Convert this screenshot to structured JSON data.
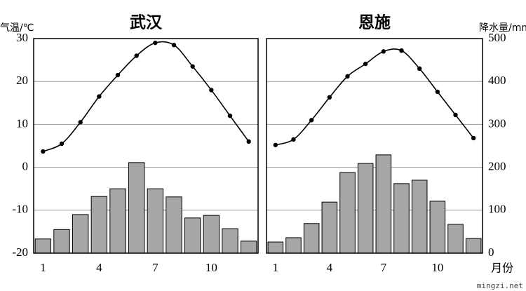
{
  "chart_data": [
    {
      "type": "climate",
      "title": "武汉",
      "categories": [
        "1",
        null,
        null,
        "4",
        null,
        null,
        "7",
        null,
        null,
        "10",
        null,
        null
      ],
      "series": [
        {
          "name": "气温",
          "color": "#000000",
          "values": [
            3.7,
            5.5,
            10.5,
            16.5,
            21.5,
            26,
            29,
            28.5,
            23.5,
            18,
            12,
            6
          ]
        },
        {
          "name": "降水量",
          "color": "#a6a6a6",
          "axis": "y2",
          "values": [
            33,
            55,
            90,
            132,
            150,
            211,
            150,
            131,
            82,
            88,
            57,
            28
          ]
        }
      ],
      "ylim": [
        -20,
        30
      ],
      "yticks": [
        -20,
        -10,
        0,
        10,
        20,
        30
      ],
      "y_label": "气温/℃",
      "y2lim": [
        0,
        500
      ],
      "grid": true
    },
    {
      "type": "climate",
      "title": "恩施",
      "categories": [
        "1",
        null,
        null,
        "4",
        null,
        null,
        "7",
        null,
        null,
        "10",
        null,
        null
      ],
      "series": [
        {
          "name": "气温",
          "color": "#000000",
          "values": [
            5.2,
            6.5,
            11,
            16.3,
            21.2,
            24.1,
            27,
            27.2,
            23,
            17.6,
            12.2,
            6.8
          ]
        },
        {
          "name": "降水量",
          "color": "#a6a6a6",
          "axis": "y2",
          "values": [
            26,
            36,
            69,
            119,
            188,
            209,
            229,
            162,
            170,
            121,
            67,
            34
          ]
        }
      ],
      "ylim": [
        -20,
        30
      ],
      "y2lim": [
        0,
        500
      ],
      "y2ticks": [
        0,
        100,
        200,
        300,
        400,
        500
      ],
      "y2_label": "降水量/mm",
      "x_label": "月份",
      "grid": true
    }
  ],
  "watermark": "mingzi.net"
}
